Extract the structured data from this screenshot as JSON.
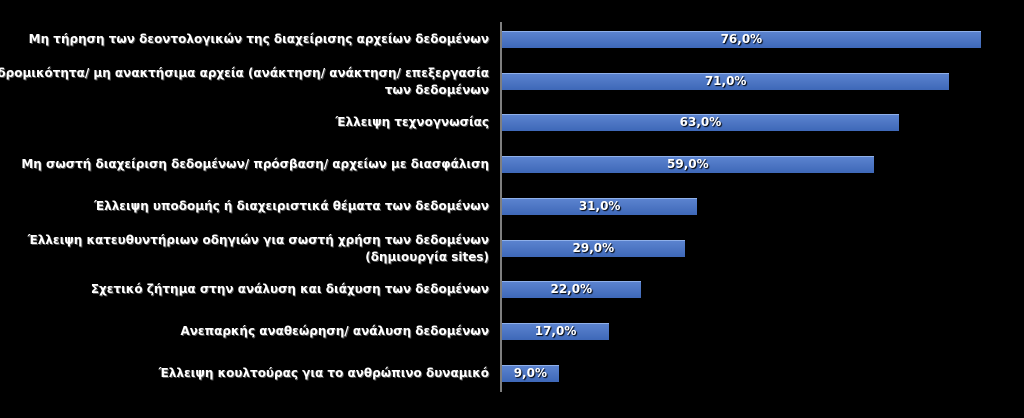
{
  "chart_data": {
    "type": "bar",
    "orientation": "horizontal",
    "xlim": [
      0,
      100
    ],
    "categories": [
      "Μη τήρηση των δεοντολογικών της διαχείρισης αρχείων δεδομένων",
      "Αναδρομικότητα/ μη ανακτήσιμα αρχεία (ανάκτηση/ ανάκτηση/ επεξεργασία των δεδομένων",
      "Έλλειψη τεχνογνωσίας",
      "Μη σωστή διαχείριση δεδομένων/ πρόσβαση/ αρχείων με διασφάλιση",
      "Έλλειψη υποδομής ή διαχειριστικά θέματα των δεδομένων",
      "Έλλειψη κατευθυντήριων οδηγιών για σωστή χρήση των δεδομένων (δημιουργία sites)",
      "Σχετικό ζήτημα στην ανάλυση και διάχυση των δεδομένων",
      "Ανεπαρκής αναθεώρηση/ ανάλυση δεδομένων",
      "Έλλειψη κουλτούρας για το ανθρώπινο δυναμικό"
    ],
    "values": [
      76.0,
      71.0,
      63.0,
      59.0,
      31.0,
      29.0,
      22.0,
      17.0,
      9.0
    ],
    "value_labels": [
      "76,0%",
      "71,0%",
      "63,0%",
      "59,0%",
      "31,0%",
      "29,0%",
      "22,0%",
      "17,0%",
      "9,0%"
    ],
    "bar_color": "#4a74c4",
    "background": "#000000",
    "grid": false,
    "legend": "none"
  }
}
